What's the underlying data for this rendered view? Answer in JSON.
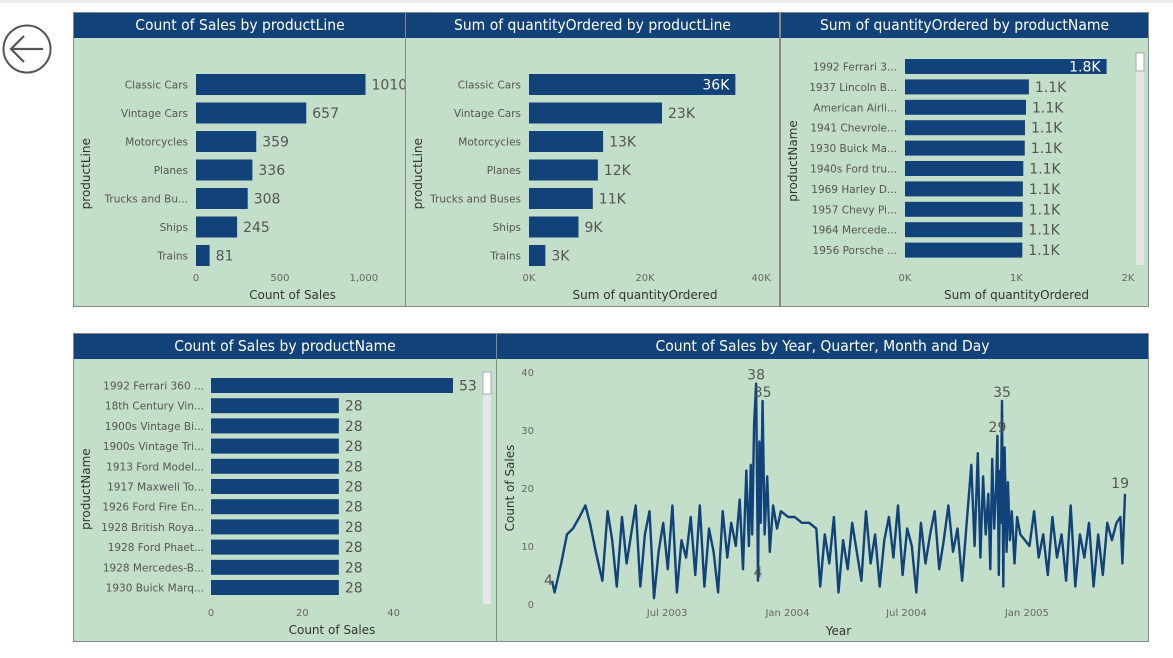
{
  "colors": {
    "bar": "#12427a",
    "panel_bg": "#c4dfc9",
    "title_bg": "#12427a",
    "title_text": "#ffffff"
  },
  "nav": {
    "back_icon": "back-arrow-icon"
  },
  "chart_data": [
    {
      "id": "c1",
      "type": "bar",
      "orientation": "horizontal",
      "title": "Count of Sales by productLine",
      "xlabel": "Count of Sales",
      "ylabel": "productLine",
      "xlim": [
        0,
        1150
      ],
      "xticks": [
        0,
        500,
        1000
      ],
      "xtick_labels": [
        "0",
        "500",
        "1,000"
      ],
      "categories": [
        "Classic Cars",
        "Vintage Cars",
        "Motorcycles",
        "Planes",
        "Trucks and Bu...",
        "Ships",
        "Trains"
      ],
      "values": [
        1010,
        657,
        359,
        336,
        308,
        245,
        81
      ],
      "value_labels": [
        "1010",
        "657",
        "359",
        "336",
        "308",
        "245",
        "81"
      ]
    },
    {
      "id": "c2",
      "type": "bar",
      "orientation": "horizontal",
      "title": "Sum of quantityOrdered by productLine",
      "xlabel": "Sum of quantityOrdered",
      "ylabel": "productLine",
      "xlim": [
        0,
        40000
      ],
      "xticks": [
        0,
        20000,
        40000
      ],
      "xtick_labels": [
        "0K",
        "20K",
        "40K"
      ],
      "categories": [
        "Classic Cars",
        "Vintage Cars",
        "Motorcycles",
        "Planes",
        "Trucks and Buses",
        "Ships",
        "Trains"
      ],
      "values": [
        35582,
        22933,
        12778,
        11872,
        11001,
        8532,
        2818
      ],
      "value_labels": [
        "36K",
        "23K",
        "13K",
        "12K",
        "11K",
        "9K",
        "3K"
      ]
    },
    {
      "id": "c3",
      "type": "bar",
      "orientation": "horizontal",
      "title": "Sum of quantityOrdered by productName",
      "xlabel": "Sum of quantityOrdered",
      "ylabel": "productName",
      "xlim": [
        0,
        2000
      ],
      "xticks": [
        0,
        1000,
        2000
      ],
      "xtick_labels": [
        "0K",
        "1K",
        "2K"
      ],
      "categories": [
        "1992 Ferrari 3...",
        "1937 Lincoln B...",
        "American Airli...",
        "1941 Chevrole...",
        "1930 Buick Ma...",
        "1940s Ford tru...",
        "1969 Harley D...",
        "1957 Chevy Pi...",
        "1964 Mercede...",
        "1956 Porsche ..."
      ],
      "values": [
        1808,
        1111,
        1085,
        1076,
        1074,
        1061,
        1057,
        1056,
        1053,
        1052
      ],
      "value_labels": [
        "1.8K",
        "1.1K",
        "1.1K",
        "1.1K",
        "1.1K",
        "1.1K",
        "1.1K",
        "1.1K",
        "1.1K",
        "1.1K"
      ]
    },
    {
      "id": "c4",
      "type": "bar",
      "orientation": "horizontal",
      "title": "Count of Sales by productName",
      "xlabel": "Count of Sales",
      "ylabel": "productName",
      "xlim": [
        0,
        53
      ],
      "xticks": [
        0,
        20,
        40
      ],
      "xtick_labels": [
        "0",
        "20",
        "40"
      ],
      "categories": [
        "1992 Ferrari 360 ...",
        "18th Century Vin...",
        "1900s Vintage Bi...",
        "1900s Vintage Tri...",
        "1913 Ford Model...",
        "1917 Maxwell To...",
        "1926 Ford Fire En...",
        "1928 British Roya...",
        "1928 Ford Phaet...",
        "1928 Mercedes-B...",
        "1930 Buick Marq..."
      ],
      "values": [
        53,
        28,
        28,
        28,
        28,
        28,
        28,
        28,
        28,
        28,
        28
      ],
      "value_labels": [
        "53",
        "28",
        "28",
        "28",
        "28",
        "28",
        "28",
        "28",
        "28",
        "28",
        "28"
      ]
    },
    {
      "id": "c5",
      "type": "line",
      "title": "Count of Sales by Year, Quarter, Month and Day",
      "xlabel": "Year",
      "ylabel": "Count of Sales",
      "xlim": [
        "2003-01-06",
        "2005-05-31"
      ],
      "ylim": [
        0,
        40
      ],
      "xticks": [
        "2003-07-01",
        "2004-01-01",
        "2004-07-01",
        "2005-01-01"
      ],
      "xtick_labels": [
        "Jul 2003",
        "Jan 2004",
        "Jul 2004",
        "Jan 2005"
      ],
      "yticks": [
        0,
        10,
        20,
        30,
        40
      ],
      "ytick_labels": [
        "0",
        "10",
        "20",
        "30",
        "40"
      ],
      "annotations": [
        {
          "x": "2003-01-06",
          "y": 4,
          "label": "4"
        },
        {
          "x": "2003-11-14",
          "y": 38,
          "label": "38"
        },
        {
          "x": "2003-11-24",
          "y": 35,
          "label": "35"
        },
        {
          "x": "2003-11-17",
          "y": 4,
          "label": "4"
        },
        {
          "x": "2004-11-17",
          "y": 29,
          "label": "29"
        },
        {
          "x": "2004-11-24",
          "y": 35,
          "label": "35"
        },
        {
          "x": "2005-05-31",
          "y": 19,
          "label": "19"
        }
      ],
      "series": [
        {
          "values": [
            [
              "2003-01-06",
              4
            ],
            [
              "2003-01-10",
              2
            ],
            [
              "2003-01-20",
              7
            ],
            [
              "2003-01-29",
              12
            ],
            [
              "2003-02-07",
              13
            ],
            [
              "2003-02-17",
              15
            ],
            [
              "2003-02-26",
              17
            ],
            [
              "2003-03-05",
              14
            ],
            [
              "2003-03-14",
              9
            ],
            [
              "2003-03-24",
              4
            ],
            [
              "2003-04-01",
              16
            ],
            [
              "2003-04-08",
              11
            ],
            [
              "2003-04-15",
              3
            ],
            [
              "2003-04-23",
              15
            ],
            [
              "2003-04-30",
              7
            ],
            [
              "2003-05-07",
              12
            ],
            [
              "2003-05-14",
              17
            ],
            [
              "2003-05-21",
              3
            ],
            [
              "2003-05-28",
              12
            ],
            [
              "2003-06-04",
              16
            ],
            [
              "2003-06-11",
              1
            ],
            [
              "2003-06-18",
              9
            ],
            [
              "2003-06-25",
              14
            ],
            [
              "2003-07-02",
              6
            ],
            [
              "2003-07-09",
              17
            ],
            [
              "2003-07-16",
              2
            ],
            [
              "2003-07-23",
              11
            ],
            [
              "2003-07-30",
              8
            ],
            [
              "2003-08-06",
              15
            ],
            [
              "2003-08-13",
              5
            ],
            [
              "2003-08-20",
              17
            ],
            [
              "2003-08-27",
              3
            ],
            [
              "2003-09-03",
              13
            ],
            [
              "2003-09-10",
              9
            ],
            [
              "2003-09-17",
              2
            ],
            [
              "2003-09-24",
              16
            ],
            [
              "2003-10-01",
              8
            ],
            [
              "2003-10-07",
              14
            ],
            [
              "2003-10-14",
              10
            ],
            [
              "2003-10-20",
              18
            ],
            [
              "2003-10-25",
              6
            ],
            [
              "2003-10-30",
              23
            ],
            [
              "2003-11-03",
              10
            ],
            [
              "2003-11-06",
              24
            ],
            [
              "2003-11-08",
              12
            ],
            [
              "2003-11-11",
              31
            ],
            [
              "2003-11-14",
              38
            ],
            [
              "2003-11-17",
              4
            ],
            [
              "2003-11-19",
              28
            ],
            [
              "2003-11-21",
              14
            ],
            [
              "2003-11-24",
              35
            ],
            [
              "2003-11-27",
              12
            ],
            [
              "2003-12-01",
              22
            ],
            [
              "2003-12-05",
              9
            ],
            [
              "2003-12-10",
              17
            ],
            [
              "2003-12-16",
              13
            ],
            [
              "2003-12-22",
              16
            ],
            [
              "2004-01-02",
              15
            ],
            [
              "2004-01-12",
              15
            ],
            [
              "2004-01-23",
              14
            ],
            [
              "2004-02-03",
              14
            ],
            [
              "2004-02-14",
              13
            ],
            [
              "2004-02-20",
              3
            ],
            [
              "2004-02-27",
              12
            ],
            [
              "2004-03-05",
              7
            ],
            [
              "2004-03-12",
              15
            ],
            [
              "2004-03-19",
              2
            ],
            [
              "2004-03-26",
              11
            ],
            [
              "2004-04-02",
              6
            ],
            [
              "2004-04-09",
              14
            ],
            [
              "2004-04-16",
              9
            ],
            [
              "2004-04-23",
              4
            ],
            [
              "2004-04-30",
              16
            ],
            [
              "2004-05-07",
              7
            ],
            [
              "2004-05-14",
              12
            ],
            [
              "2004-05-21",
              3
            ],
            [
              "2004-05-28",
              11
            ],
            [
              "2004-06-04",
              15
            ],
            [
              "2004-06-11",
              8
            ],
            [
              "2004-06-18",
              17
            ],
            [
              "2004-06-25",
              5
            ],
            [
              "2004-07-02",
              13
            ],
            [
              "2004-07-09",
              10
            ],
            [
              "2004-07-16",
              2
            ],
            [
              "2004-07-23",
              14
            ],
            [
              "2004-07-30",
              7
            ],
            [
              "2004-08-06",
              12
            ],
            [
              "2004-08-13",
              16
            ],
            [
              "2004-08-20",
              6
            ],
            [
              "2004-08-27",
              11
            ],
            [
              "2004-09-03",
              17
            ],
            [
              "2004-09-10",
              9
            ],
            [
              "2004-09-17",
              13
            ],
            [
              "2004-09-24",
              4
            ],
            [
              "2004-10-01",
              14
            ],
            [
              "2004-10-08",
              24
            ],
            [
              "2004-10-13",
              10
            ],
            [
              "2004-10-18",
              26
            ],
            [
              "2004-10-22",
              8
            ],
            [
              "2004-10-26",
              22
            ],
            [
              "2004-10-30",
              12
            ],
            [
              "2004-11-03",
              19
            ],
            [
              "2004-11-06",
              6
            ],
            [
              "2004-11-09",
              25
            ],
            [
              "2004-11-12",
              13
            ],
            [
              "2004-11-15",
              20
            ],
            [
              "2004-11-17",
              29
            ],
            [
              "2004-11-19",
              5
            ],
            [
              "2004-11-21",
              23
            ],
            [
              "2004-11-22",
              14
            ],
            [
              "2004-11-24",
              35
            ],
            [
              "2004-11-26",
              3
            ],
            [
              "2004-11-28",
              27
            ],
            [
              "2004-12-01",
              9
            ],
            [
              "2004-12-03",
              21
            ],
            [
              "2004-12-06",
              11
            ],
            [
              "2004-12-09",
              16
            ],
            [
              "2004-12-13",
              7
            ],
            [
              "2004-12-17",
              15
            ],
            [
              "2004-12-22",
              12
            ],
            [
              "2005-01-05",
              10
            ],
            [
              "2005-01-12",
              16
            ],
            [
              "2005-01-19",
              8
            ],
            [
              "2005-01-26",
              12
            ],
            [
              "2005-02-02",
              5
            ],
            [
              "2005-02-09",
              15
            ],
            [
              "2005-02-16",
              8
            ],
            [
              "2005-02-23",
              12
            ],
            [
              "2005-03-02",
              4
            ],
            [
              "2005-03-09",
              17
            ],
            [
              "2005-03-16",
              3
            ],
            [
              "2005-03-23",
              12
            ],
            [
              "2005-03-30",
              8
            ],
            [
              "2005-04-06",
              14
            ],
            [
              "2005-04-13",
              3
            ],
            [
              "2005-04-20",
              12
            ],
            [
              "2005-04-27",
              5
            ],
            [
              "2005-05-04",
              14
            ],
            [
              "2005-05-11",
              11
            ],
            [
              "2005-05-18",
              14
            ],
            [
              "2005-05-24",
              15
            ],
            [
              "2005-05-27",
              7
            ],
            [
              "2005-05-31",
              19
            ]
          ]
        }
      ]
    }
  ]
}
